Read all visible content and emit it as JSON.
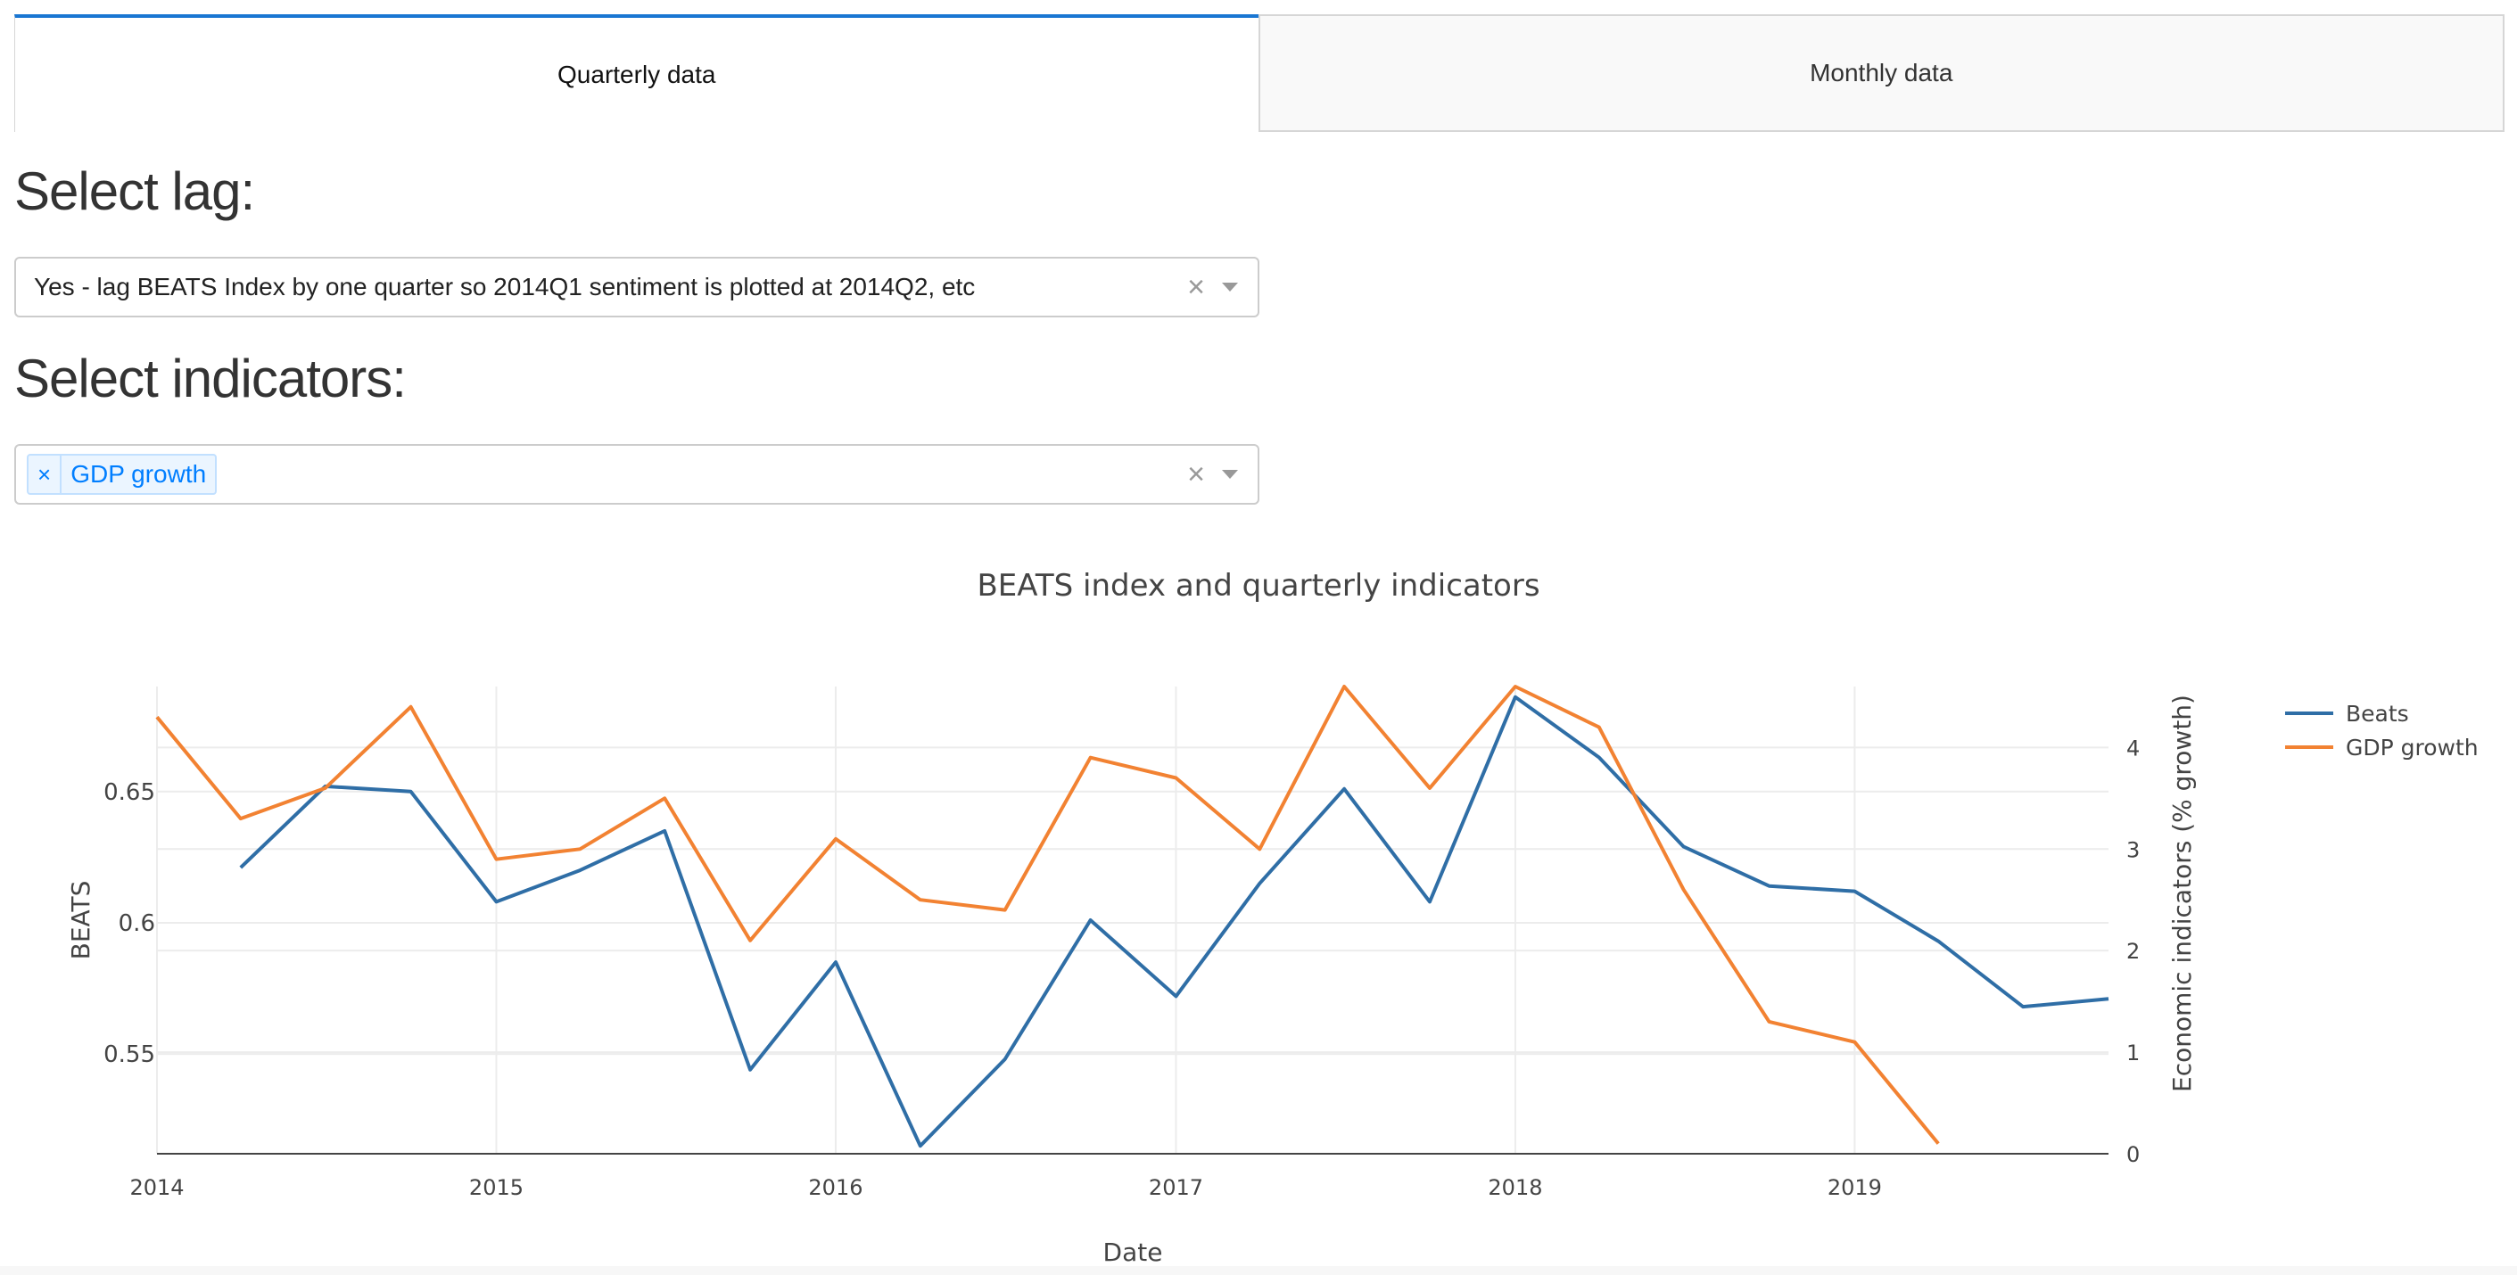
{
  "tabs": [
    {
      "label": "Quarterly data",
      "active": true
    },
    {
      "label": "Monthly data",
      "active": false
    }
  ],
  "lag_section": {
    "heading": "Select lag:",
    "selected_value": "Yes - lag BEATS Index by one quarter so 2014Q1 sentiment is plotted at 2014Q2, etc",
    "clear_icon": "×"
  },
  "indicators_section": {
    "heading": "Select indicators:",
    "tags": [
      "GDP growth"
    ],
    "tag_remove_icon": "×",
    "clear_icon": "×"
  },
  "colors": {
    "accent": "#1976d2",
    "beats": "#2f6ea6",
    "gdp": "#f28232",
    "tag_text": "#007eff"
  },
  "chart_data": {
    "type": "line",
    "title": "BEATS index and quarterly indicators",
    "xlabel": "Date",
    "ylabel": "BEATS",
    "y2label": "Economic indicators (% growth)",
    "x_ticks": [
      "2014",
      "2015",
      "2016",
      "2017",
      "2018",
      "2019"
    ],
    "xlim": [
      "2014-01-01",
      "2019-10-01"
    ],
    "ylim": [
      0.512,
      0.69
    ],
    "y_ticks": [
      0.55,
      0.6,
      0.65
    ],
    "y_tick_labels": [
      "0.55",
      "0.6",
      "0.65"
    ],
    "y2lim": [
      0,
      4.6
    ],
    "y2_ticks": [
      0,
      1,
      2,
      3,
      4
    ],
    "y2_tick_labels": [
      "0",
      "1",
      "2",
      "3",
      "4"
    ],
    "grid": true,
    "legend_position": "top-right",
    "series": [
      {
        "name": "Beats",
        "axis": "left",
        "x": [
          "2014-04-01",
          "2014-07-01",
          "2014-10-01",
          "2015-01-01",
          "2015-04-01",
          "2015-07-01",
          "2015-10-01",
          "2016-01-01",
          "2016-04-01",
          "2016-07-01",
          "2016-10-01",
          "2017-01-01",
          "2017-04-01",
          "2017-07-01",
          "2017-10-01",
          "2018-01-01",
          "2018-04-01",
          "2018-07-01",
          "2018-10-01",
          "2019-01-01",
          "2019-04-01",
          "2019-07-01",
          "2019-10-01"
        ],
        "values": [
          0.621,
          0.652,
          0.65,
          0.608,
          0.62,
          0.635,
          0.544,
          0.585,
          0.515,
          0.548,
          0.601,
          0.572,
          0.615,
          0.651,
          0.608,
          0.686,
          0.663,
          0.629,
          0.614,
          0.612,
          0.593,
          0.568,
          0.571
        ]
      },
      {
        "name": "GDP growth",
        "axis": "right",
        "x": [
          "2014-01-01",
          "2014-04-01",
          "2014-07-01",
          "2014-10-01",
          "2015-01-01",
          "2015-04-01",
          "2015-07-01",
          "2015-10-01",
          "2016-01-01",
          "2016-04-01",
          "2016-07-01",
          "2016-10-01",
          "2017-01-01",
          "2017-04-01",
          "2017-07-01",
          "2017-10-01",
          "2018-01-01",
          "2018-04-01",
          "2018-07-01",
          "2018-10-01",
          "2019-01-01",
          "2019-04-01"
        ],
        "values": [
          4.3,
          3.3,
          3.6,
          4.4,
          2.9,
          3.0,
          3.5,
          2.1,
          3.1,
          2.5,
          2.4,
          3.9,
          3.7,
          3.0,
          4.6,
          3.6,
          4.6,
          4.2,
          2.6,
          1.3,
          1.1,
          0.1
        ]
      }
    ]
  }
}
